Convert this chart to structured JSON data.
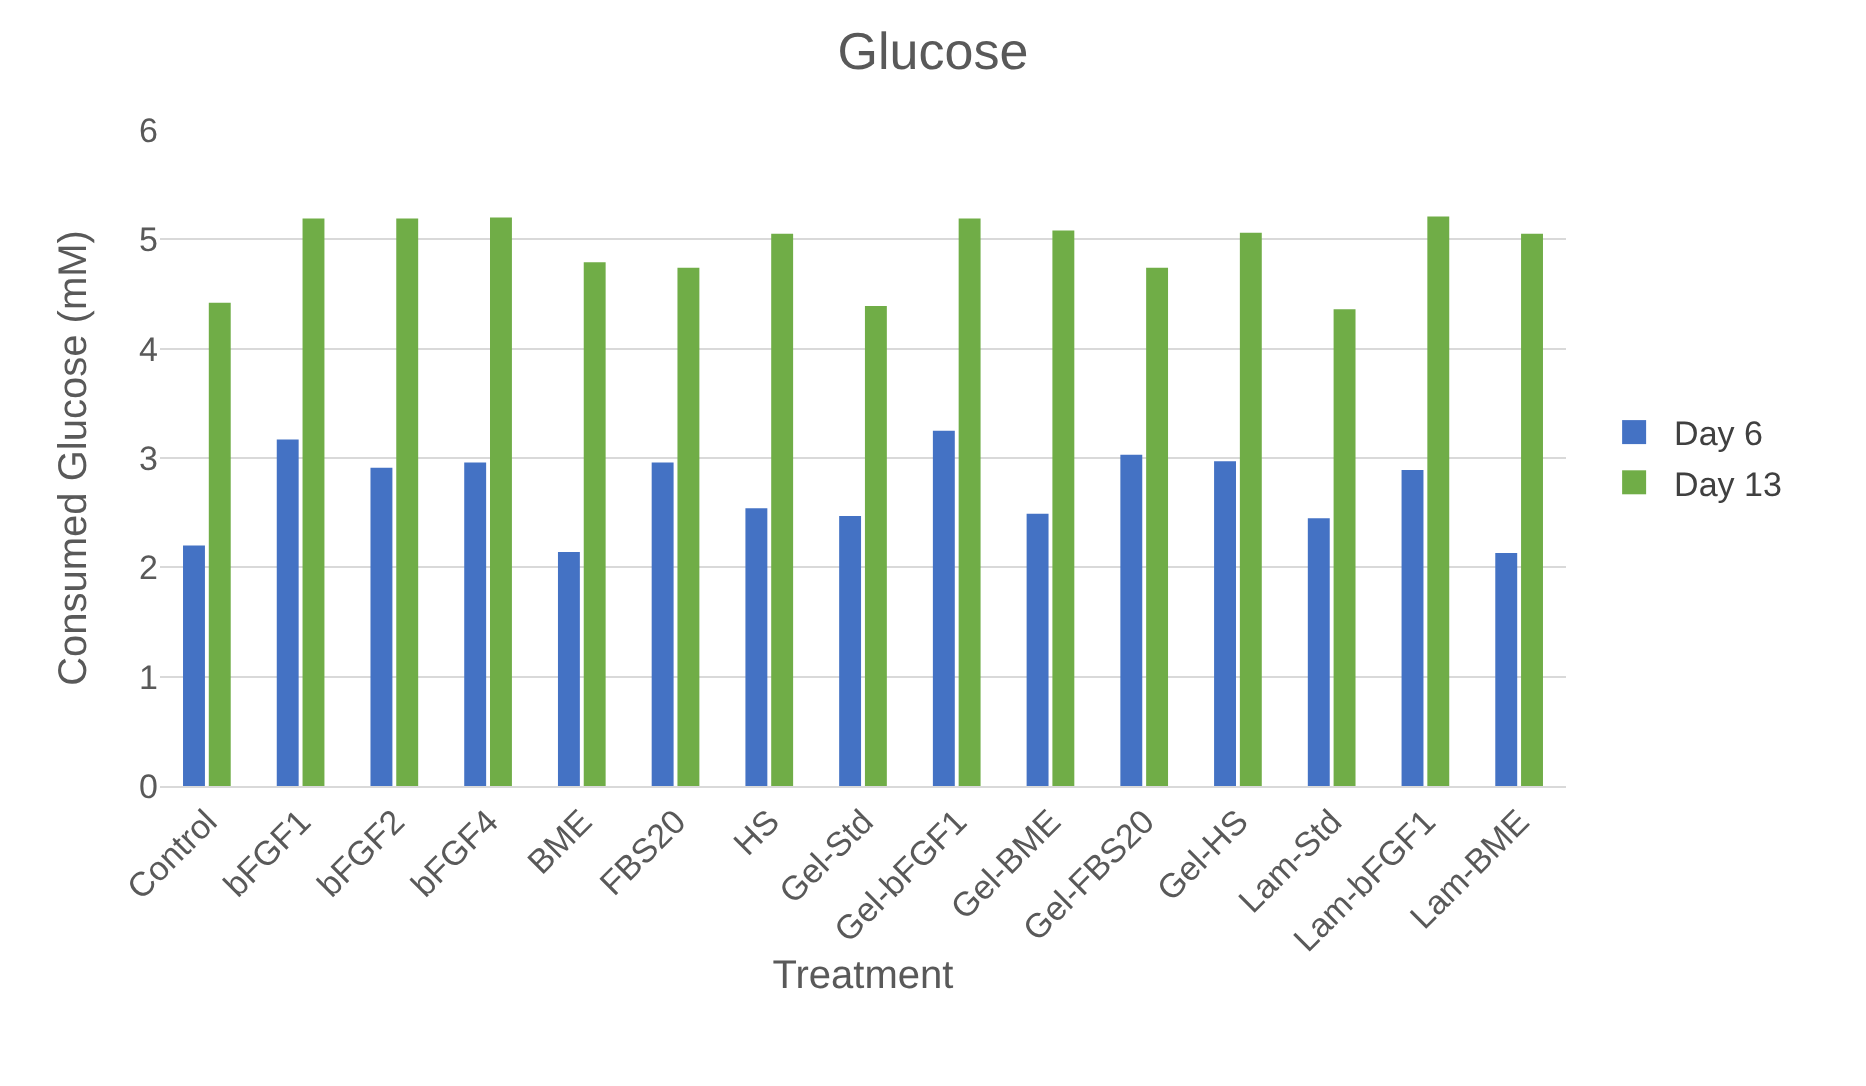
{
  "chart_data": {
    "type": "bar",
    "title": "Glucose",
    "xlabel": "Treatment",
    "ylabel": "Consumed Glucose (mM)",
    "categories": [
      "Control",
      "bFGF1",
      "bFGF2",
      "bFGF4",
      "BME",
      "FBS20",
      "HS",
      "Gel-Std",
      "Gel-bFGF1",
      "Gel-BME",
      "Gel-FBS20",
      "Gel-HS",
      "Lam-Std",
      "Lam-bFGF1",
      "Lam-BME"
    ],
    "series": [
      {
        "name": "Day 6",
        "color": "#4472c4",
        "values": [
          2.2,
          3.17,
          2.91,
          2.96,
          2.14,
          2.96,
          2.54,
          2.47,
          3.25,
          2.49,
          3.03,
          2.97,
          2.45,
          2.89,
          2.13
        ]
      },
      {
        "name": "Day 13",
        "color": "#70ad47",
        "values": [
          4.42,
          5.19,
          5.19,
          5.2,
          4.79,
          4.74,
          5.05,
          4.39,
          5.19,
          5.08,
          4.74,
          5.06,
          4.36,
          5.21,
          5.05
        ]
      }
    ],
    "ylim": [
      0,
      6
    ],
    "yticks": [
      0,
      1,
      2,
      3,
      4,
      5,
      6
    ],
    "grid": "y",
    "legend": "right"
  }
}
